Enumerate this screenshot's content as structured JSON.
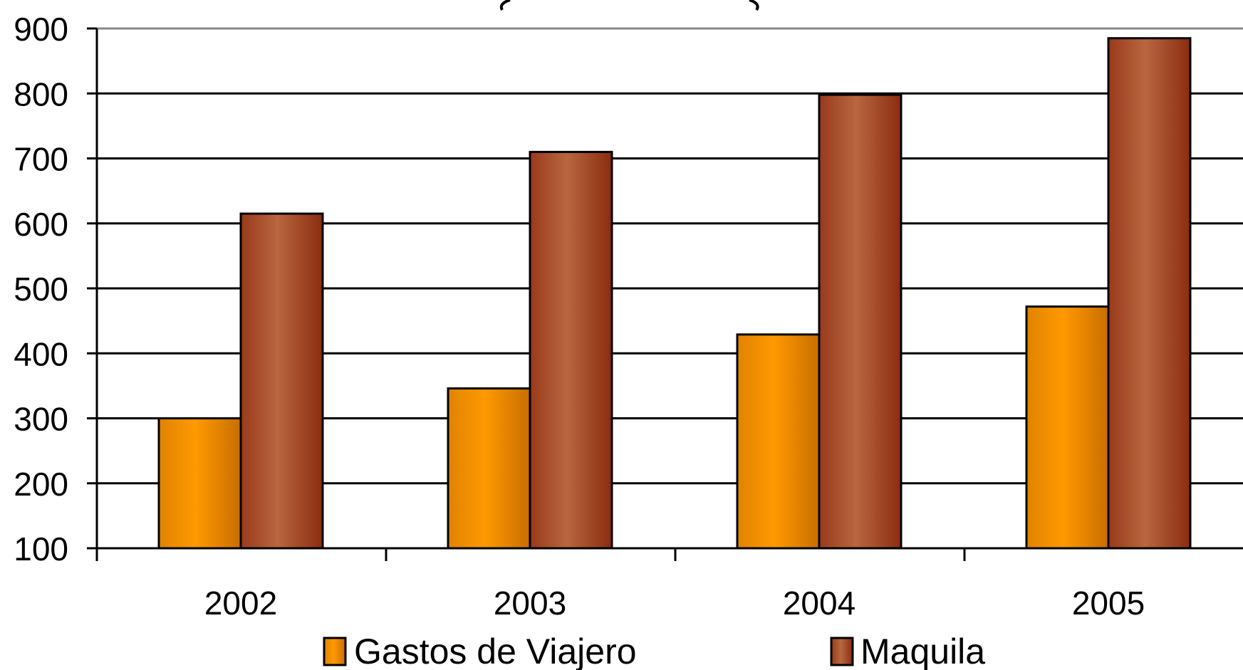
{
  "chart_data": {
    "type": "bar",
    "categories": [
      "2002",
      "2003",
      "2004",
      "2005"
    ],
    "series": [
      {
        "name": "Gastos de Viajero",
        "values": [
          300,
          346,
          429,
          472
        ]
      },
      {
        "name": "Maquila",
        "values": [
          615,
          710,
          798,
          885
        ]
      }
    ],
    "ylim": [
      100,
      900
    ],
    "yticks": [
      "100",
      "200",
      "300",
      "400",
      "500",
      "600",
      "700",
      "800",
      "900"
    ],
    "grid": true,
    "legend_position": "bottom",
    "colors": {
      "Gastos de Viajero": {
        "light": "#ff9900",
        "dark": "#cc7000"
      },
      "Maquila": {
        "light": "#b8673f",
        "dark": "#8b2c10"
      }
    }
  }
}
